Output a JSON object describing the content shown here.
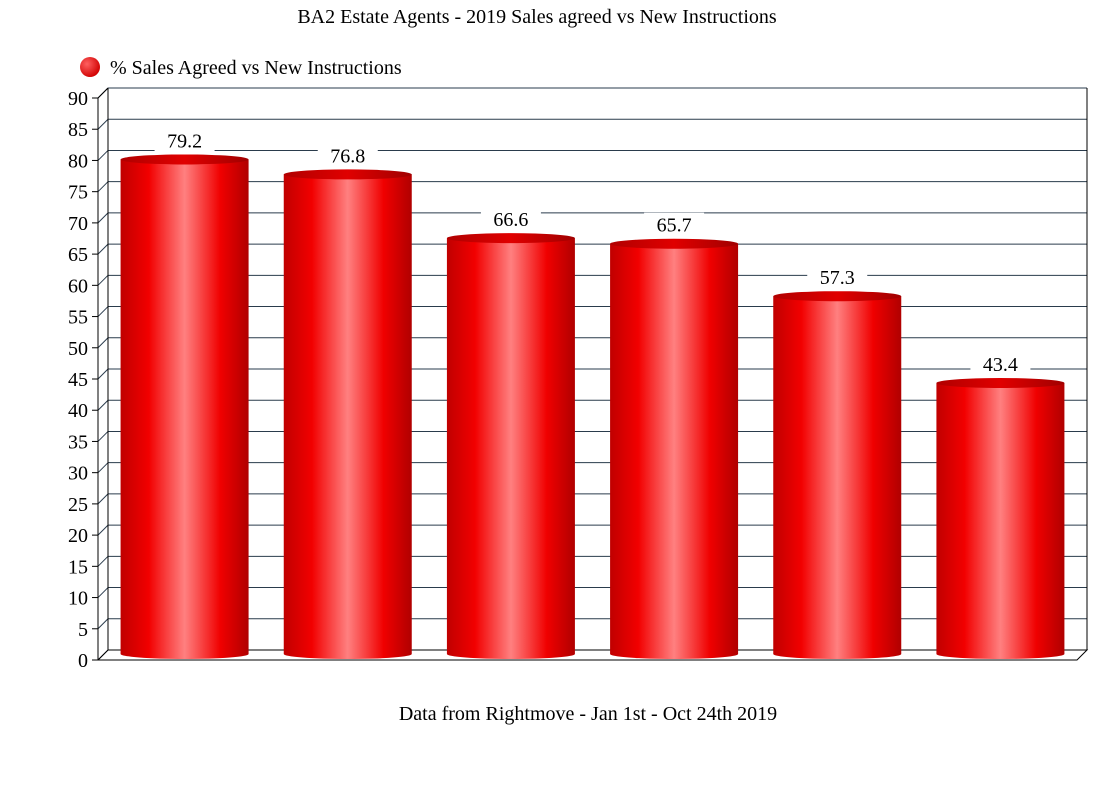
{
  "chart_data": {
    "type": "bar",
    "title": "BA2 Estate Agents - 2019 Sales agreed vs New Instructions",
    "xlabel": "Data from Rightmove - Jan 1st - Oct 24th 2019",
    "ylabel": "",
    "ylim": [
      0,
      90
    ],
    "ytick_step": 5,
    "grid": true,
    "legend_position": "top-left",
    "series": [
      {
        "name": "% Sales Agreed vs New Instructions",
        "color": "#ee0000",
        "values": [
          79.2,
          76.8,
          66.6,
          65.7,
          57.3,
          43.4
        ]
      }
    ]
  }
}
